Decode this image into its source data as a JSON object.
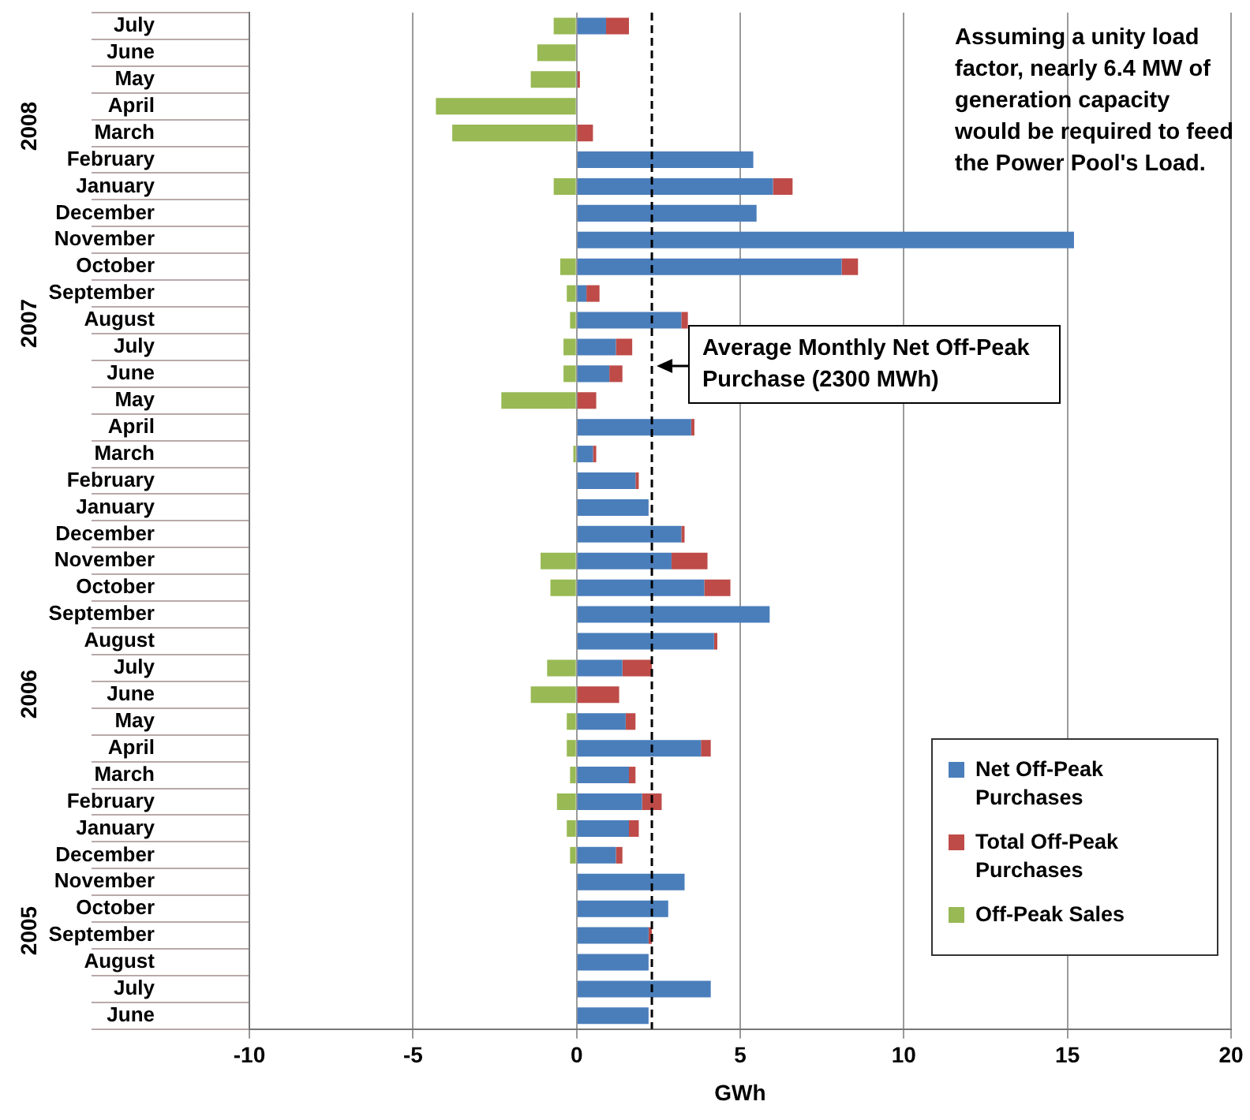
{
  "chart_data": {
    "type": "bar",
    "orientation": "horizontal",
    "stacked": true,
    "xlabel": "GWh",
    "categories": [
      "July",
      "June",
      "May",
      "April",
      "March",
      "February",
      "January",
      "December",
      "November",
      "October",
      "September",
      "August",
      "July",
      "June",
      "May",
      "April",
      "March",
      "February",
      "January",
      "December",
      "November",
      "October",
      "September",
      "August",
      "July",
      "June",
      "May",
      "April",
      "March",
      "February",
      "January",
      "December",
      "November",
      "October",
      "September",
      "August",
      "July",
      "June"
    ],
    "series": [
      {
        "name": "Net Off-Peak Purchases",
        "color": "#4a7ebb",
        "values": [
          0.9,
          null,
          null,
          null,
          null,
          5.4,
          6.0,
          5.5,
          15.2,
          8.1,
          0.3,
          3.2,
          1.2,
          1.0,
          null,
          3.5,
          0.5,
          1.8,
          2.2,
          3.2,
          2.9,
          3.9,
          5.9,
          4.2,
          1.4,
          null,
          1.5,
          3.8,
          1.6,
          2.0,
          1.6,
          1.2,
          3.3,
          2.8,
          2.2,
          2.2,
          4.1,
          2.2
        ]
      },
      {
        "name": "Total Off-Peak Purchases",
        "color": "#be4b48",
        "values": [
          0.7,
          null,
          0.1,
          null,
          0.5,
          null,
          0.6,
          null,
          null,
          0.5,
          0.4,
          0.2,
          0.5,
          0.4,
          0.6,
          0.1,
          0.1,
          0.1,
          null,
          0.1,
          1.1,
          0.8,
          null,
          0.1,
          0.9,
          1.3,
          0.3,
          0.3,
          0.2,
          0.6,
          0.3,
          0.2,
          null,
          null,
          0.1,
          null,
          null,
          null
        ]
      },
      {
        "name": "Off-Peak Sales",
        "color": "#98b954",
        "values": [
          -0.7,
          -1.2,
          -1.4,
          -4.3,
          -3.8,
          null,
          -0.7,
          null,
          null,
          -0.5,
          -0.3,
          -0.2,
          -0.4,
          -0.4,
          -2.3,
          null,
          -0.1,
          null,
          null,
          null,
          -1.1,
          -0.8,
          null,
          null,
          -0.9,
          -1.4,
          -0.3,
          -0.3,
          -0.2,
          -0.6,
          -0.3,
          -0.2,
          null,
          null,
          null,
          null,
          null,
          null
        ]
      }
    ],
    "xlim": [
      -10,
      20
    ],
    "xticks": [
      -10,
      -5,
      0,
      5,
      10,
      15,
      20
    ],
    "grid": "x",
    "legend": "bottom right",
    "ref_lines": [
      {
        "axis": "x",
        "value": 2.3,
        "label": "Average Monthly Net Off-Peak Purchase (2300 MWh)",
        "color": "#000000",
        "line_style": "dashed"
      }
    ],
    "annotations": [
      "2008",
      "2007",
      "2006",
      "2005",
      "Assuming a unity load factor, nearly 6.4 MW of generation capacity would be required to feed the Power Pool's Load."
    ]
  }
}
